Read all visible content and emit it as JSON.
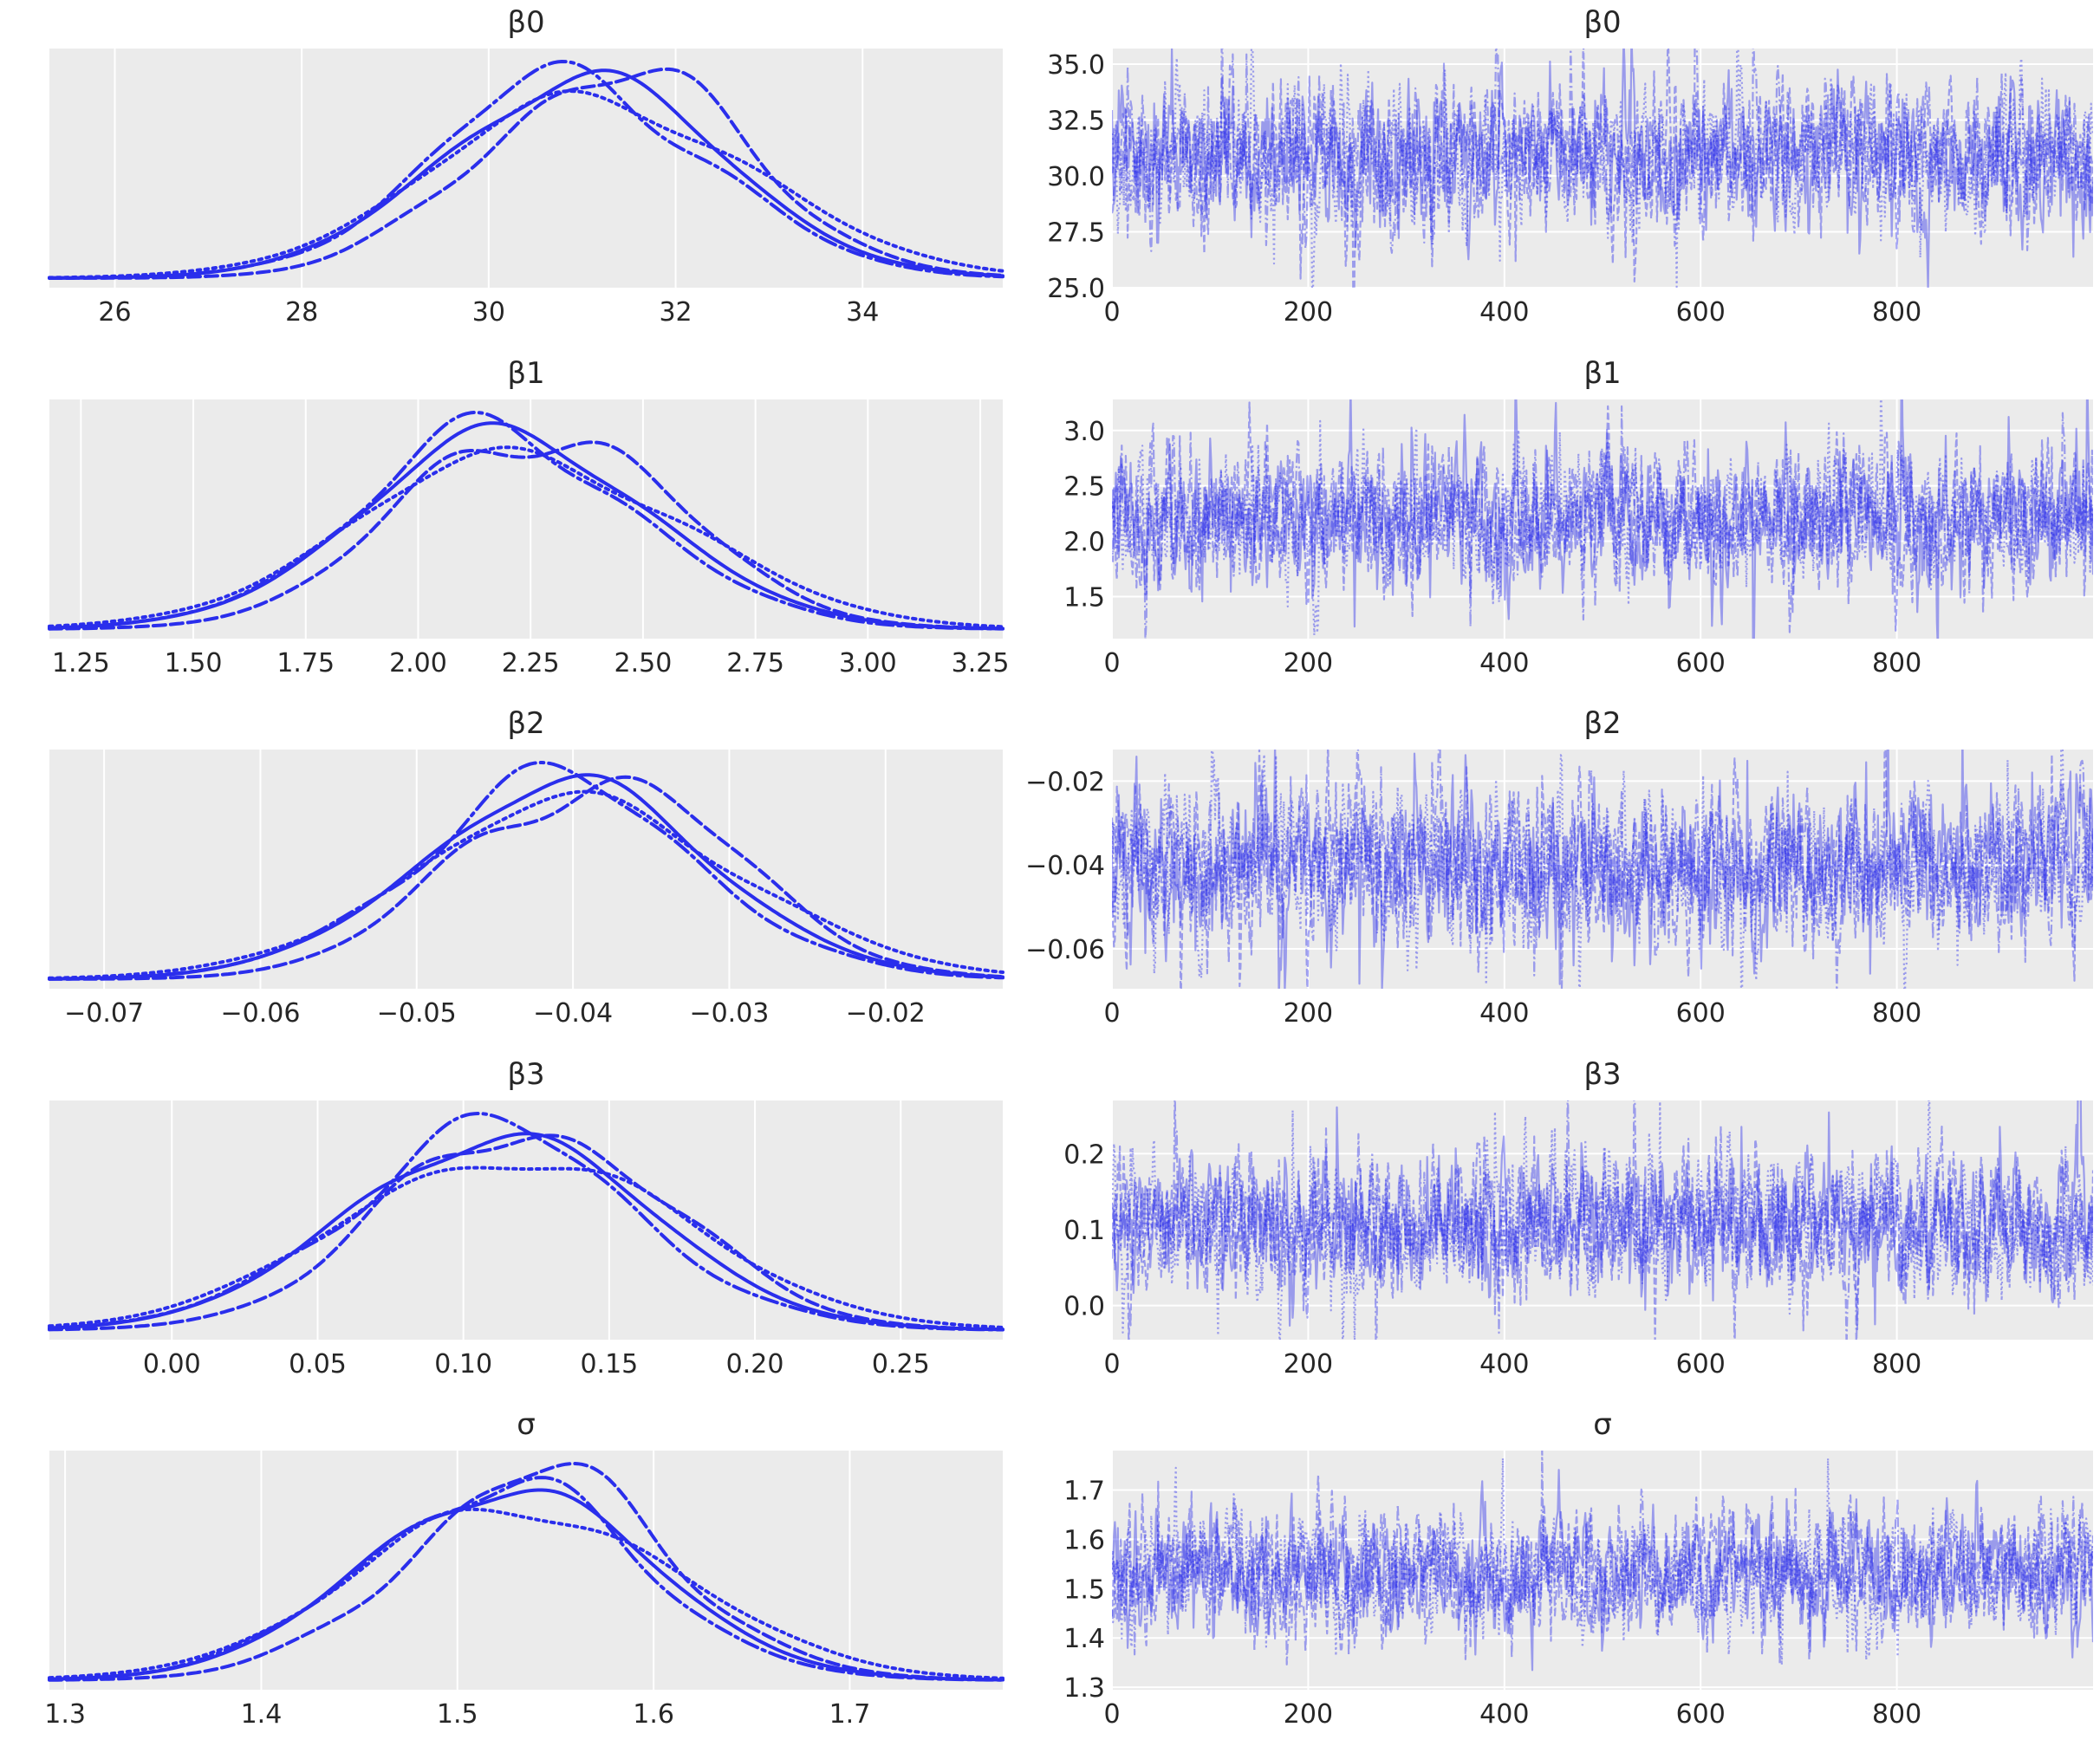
{
  "figure": {
    "background_color": "#ffffff",
    "panel_background_color": "#ebebeb",
    "grid_color": "#ffffff",
    "text_color": "#262626",
    "kde_line_color": "#2a2eec",
    "trace_line_color": "#2a2eec",
    "trace_line_alpha": 0.42,
    "n_chains": 4,
    "chain_line_styles": [
      "solid",
      "dashed",
      "dotted",
      "dashdot"
    ]
  },
  "chart_data": {
    "type": "line",
    "subtype": "mcmc-posterior-and-trace-grid",
    "layout": "5 rows x 2 columns; left column kernel density estimates, right column sample traces, 4 chains overlaid per panel",
    "legend": "none",
    "grid": "on (white gridlines on gray panels)",
    "rows": [
      {
        "label": "β0",
        "kde": {
          "xlim": [
            25.3,
            35.5
          ],
          "xtick_values": [
            26,
            28,
            30,
            32,
            34
          ],
          "xtick_labels": [
            "26",
            "28",
            "30",
            "32",
            "34"
          ],
          "mean": 31.0,
          "sd": 1.5
        },
        "trace": {
          "xlim": [
            0,
            1000
          ],
          "xtick_values": [
            0,
            200,
            400,
            600,
            800
          ],
          "xtick_labels": [
            "0",
            "200",
            "400",
            "600",
            "800"
          ],
          "ylim": [
            25.0,
            35.7
          ],
          "ytick_values": [
            35.0,
            32.5,
            30.0,
            27.5,
            25.0
          ],
          "ytick_labels": [
            "35.0",
            "32.5",
            "30.0",
            "27.5",
            "25.0"
          ],
          "mean": 30.9,
          "sd": 1.5,
          "n_samples": 1000
        }
      },
      {
        "label": "β1",
        "kde": {
          "xlim": [
            1.18,
            3.3
          ],
          "xtick_values": [
            1.25,
            1.5,
            1.75,
            2.0,
            2.25,
            2.5,
            2.75,
            3.0,
            3.25
          ],
          "xtick_labels": [
            "1.25",
            "1.50",
            "1.75",
            "2.00",
            "2.25",
            "2.50",
            "2.75",
            "3.00",
            "3.25"
          ],
          "mean": 2.2,
          "sd": 0.32
        },
        "trace": {
          "xlim": [
            0,
            1000
          ],
          "xtick_values": [
            0,
            200,
            400,
            600,
            800
          ],
          "xtick_labels": [
            "0",
            "200",
            "400",
            "600",
            "800"
          ],
          "ylim": [
            1.12,
            3.28
          ],
          "ytick_values": [
            3.0,
            2.5,
            2.0,
            1.5
          ],
          "ytick_labels": [
            "3.0",
            "2.5",
            "2.0",
            "1.5"
          ],
          "mean": 2.2,
          "sd": 0.29,
          "n_samples": 1000
        }
      },
      {
        "label": "β2",
        "kde": {
          "xlim": [
            -0.0735,
            -0.0125
          ],
          "xtick_values": [
            -0.07,
            -0.06,
            -0.05,
            -0.04,
            -0.03,
            -0.02
          ],
          "xtick_labels": [
            "−0.07",
            "−0.06",
            "−0.05",
            "−0.04",
            "−0.03",
            "−0.02"
          ],
          "mean": -0.0405,
          "sd": 0.0093
        },
        "trace": {
          "xlim": [
            0,
            1000
          ],
          "xtick_values": [
            0,
            200,
            400,
            600,
            800
          ],
          "xtick_labels": [
            "0",
            "200",
            "400",
            "600",
            "800"
          ],
          "ylim": [
            -0.0695,
            -0.0125
          ],
          "ytick_values": [
            -0.02,
            -0.04,
            -0.06
          ],
          "ytick_labels": [
            "−0.02",
            "−0.04",
            "−0.06"
          ],
          "mean": -0.0405,
          "sd": 0.0088,
          "n_samples": 1000
        }
      },
      {
        "label": "β3",
        "kde": {
          "xlim": [
            -0.042,
            0.285
          ],
          "xtick_values": [
            0.0,
            0.05,
            0.1,
            0.15,
            0.2,
            0.25
          ],
          "xtick_labels": [
            "0.00",
            "0.05",
            "0.10",
            "0.15",
            "0.20",
            "0.25"
          ],
          "mean": 0.112,
          "sd": 0.051
        },
        "trace": {
          "xlim": [
            0,
            1000
          ],
          "xtick_values": [
            0,
            200,
            400,
            600,
            800
          ],
          "xtick_labels": [
            "0",
            "200",
            "400",
            "600",
            "800"
          ],
          "ylim": [
            -0.045,
            0.27
          ],
          "ytick_values": [
            0.2,
            0.1,
            0.0
          ],
          "ytick_labels": [
            "0.2",
            "0.1",
            "0.0"
          ],
          "mean": 0.108,
          "sd": 0.043,
          "n_samples": 1000
        }
      },
      {
        "label": "σ",
        "kde": {
          "xlim": [
            1.292,
            1.778
          ],
          "xtick_values": [
            1.3,
            1.4,
            1.5,
            1.6,
            1.7
          ],
          "xtick_labels": [
            "1.3",
            "1.4",
            "1.5",
            "1.6",
            "1.7"
          ],
          "mean": 1.525,
          "sd": 0.072
        },
        "trace": {
          "xlim": [
            0,
            1000
          ],
          "xtick_values": [
            0,
            200,
            400,
            600,
            800
          ],
          "xtick_labels": [
            "0",
            "200",
            "400",
            "600",
            "800"
          ],
          "ylim": [
            1.295,
            1.78
          ],
          "ytick_values": [
            1.7,
            1.6,
            1.5,
            1.4,
            1.3
          ],
          "ytick_labels": [
            "1.7",
            "1.6",
            "1.5",
            "1.4",
            "1.3"
          ],
          "mean": 1.53,
          "sd": 0.058,
          "n_samples": 1000
        }
      }
    ]
  }
}
